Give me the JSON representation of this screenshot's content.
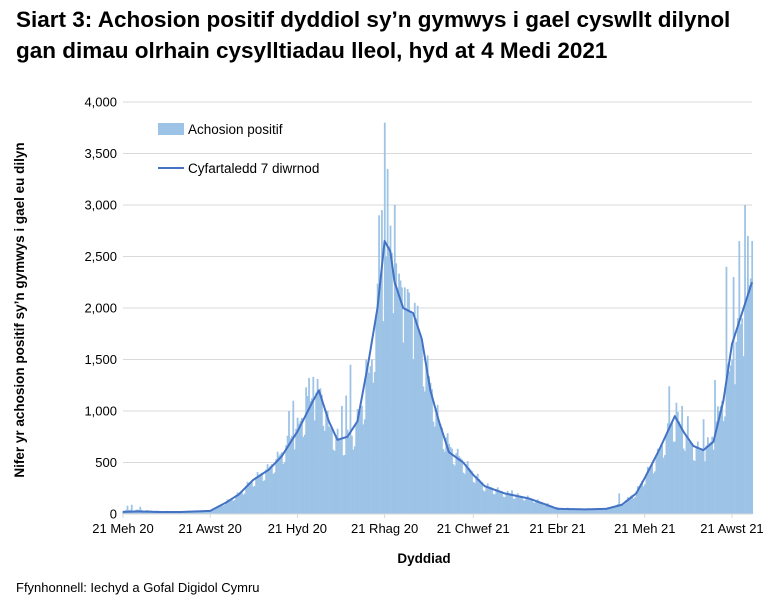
{
  "title": "Siart 3: Achosion positif dyddiol sy’n gymwys i gael cyswllt dilynol gan dimau olrhain cysylltiadau lleol, hyd at 4 Medi 2021",
  "source": "Ffynhonnell: Iechyd a Gofal Digidol Cymru",
  "chart_data": {
    "type": "bar",
    "xlabel": "Dyddiad",
    "ylabel": "Nifer yr achosion positif sy’n gymwys i gael eu dilyn",
    "ylim": [
      0,
      4000
    ],
    "yticks": [
      0,
      500,
      1000,
      1500,
      2000,
      2500,
      3000,
      3500,
      4000
    ],
    "ytick_labels": [
      "0",
      "500",
      "1,000",
      "1,500",
      "2,000",
      "2,500",
      "3,000",
      "3,500",
      "4,000"
    ],
    "x_start": "2020-06-21",
    "x_end": "2021-09-04",
    "xticks": [
      {
        "date": "2020-06-21",
        "label": "21 Meh 20"
      },
      {
        "date": "2020-08-21",
        "label": "21 Awst 20"
      },
      {
        "date": "2020-10-21",
        "label": "21 Hyd 20"
      },
      {
        "date": "2020-12-21",
        "label": "21 Rhag 20"
      },
      {
        "date": "2021-02-21",
        "label": "21 Chwef 21"
      },
      {
        "date": "2021-04-21",
        "label": "21 Ebr 21"
      },
      {
        "date": "2021-06-21",
        "label": "21 Meh 21"
      },
      {
        "date": "2021-08-21",
        "label": "21 Awst 21"
      }
    ],
    "grid": "horizontal",
    "legend_position": "top-left",
    "series": [
      {
        "name": "Achosion positif",
        "kind": "bar",
        "color": "#9dc3e6",
        "anchor_points": [
          [
            "2020-06-21",
            40
          ],
          [
            "2020-07-01",
            40
          ],
          [
            "2020-07-15",
            30
          ],
          [
            "2020-08-01",
            25
          ],
          [
            "2020-08-21",
            30
          ],
          [
            "2020-09-01",
            120
          ],
          [
            "2020-09-10",
            200
          ],
          [
            "2020-09-20",
            340
          ],
          [
            "2020-10-01",
            450
          ],
          [
            "2020-10-10",
            600
          ],
          [
            "2020-10-21",
            850
          ],
          [
            "2020-11-01",
            1150
          ],
          [
            "2020-11-06",
            1220
          ],
          [
            "2020-11-12",
            850
          ],
          [
            "2020-11-20",
            720
          ],
          [
            "2020-11-28",
            760
          ],
          [
            "2020-12-05",
            1050
          ],
          [
            "2020-12-12",
            1500
          ],
          [
            "2020-12-18",
            2300
          ],
          [
            "2020-12-24",
            2600
          ],
          [
            "2020-12-30",
            2400
          ],
          [
            "2021-01-05",
            2000
          ],
          [
            "2021-01-12",
            1900
          ],
          [
            "2021-01-20",
            1400
          ],
          [
            "2021-01-28",
            900
          ],
          [
            "2021-02-05",
            650
          ],
          [
            "2021-02-15",
            500
          ],
          [
            "2021-02-21",
            400
          ],
          [
            "2021-03-01",
            280
          ],
          [
            "2021-03-15",
            210
          ],
          [
            "2021-04-01",
            160
          ],
          [
            "2021-04-21",
            60
          ],
          [
            "2021-05-10",
            50
          ],
          [
            "2021-05-25",
            55
          ],
          [
            "2021-06-05",
            100
          ],
          [
            "2021-06-15",
            220
          ],
          [
            "2021-06-21",
            370
          ],
          [
            "2021-07-01",
            600
          ],
          [
            "2021-07-10",
            900
          ],
          [
            "2021-07-15",
            900
          ],
          [
            "2021-07-22",
            700
          ],
          [
            "2021-07-30",
            620
          ],
          [
            "2021-08-06",
            700
          ],
          [
            "2021-08-14",
            1100
          ],
          [
            "2021-08-21",
            1500
          ],
          [
            "2021-08-28",
            1900
          ],
          [
            "2021-09-04",
            2350
          ]
        ],
        "spikes": [
          [
            "2020-06-24",
            80
          ],
          [
            "2020-06-27",
            90
          ],
          [
            "2020-07-03",
            70
          ],
          [
            "2020-10-15",
            1000
          ],
          [
            "2020-10-18",
            1100
          ],
          [
            "2020-10-27",
            1230
          ],
          [
            "2020-10-29",
            1320
          ],
          [
            "2020-11-01",
            1330
          ],
          [
            "2020-11-21",
            1050
          ],
          [
            "2020-11-24",
            1150
          ],
          [
            "2020-11-27",
            1450
          ],
          [
            "2020-12-08",
            1500
          ],
          [
            "2020-12-17",
            2900
          ],
          [
            "2020-12-19",
            2950
          ],
          [
            "2020-12-21",
            3800
          ],
          [
            "2020-12-23",
            3350
          ],
          [
            "2020-12-25",
            2800
          ],
          [
            "2020-12-28",
            3000
          ],
          [
            "2020-12-30",
            2200
          ],
          [
            "2021-01-04",
            2200
          ],
          [
            "2021-01-07",
            2150
          ],
          [
            "2021-01-11",
            2050
          ],
          [
            "2021-03-20",
            230
          ],
          [
            "2021-06-03",
            200
          ],
          [
            "2021-07-08",
            1240
          ],
          [
            "2021-07-13",
            1080
          ],
          [
            "2021-07-17",
            1050
          ],
          [
            "2021-07-21",
            950
          ],
          [
            "2021-08-01",
            920
          ],
          [
            "2021-08-09",
            1300
          ],
          [
            "2021-08-17",
            2400
          ],
          [
            "2021-08-22",
            2300
          ],
          [
            "2021-08-26",
            2650
          ],
          [
            "2021-08-30",
            3000
          ],
          [
            "2021-09-01",
            2700
          ],
          [
            "2021-09-04",
            2650
          ]
        ]
      },
      {
        "name": "Cyfartaledd 7 diwrnod",
        "kind": "line",
        "color": "#4472c4",
        "points": [
          [
            "2020-06-21",
            20
          ],
          [
            "2020-07-01",
            25
          ],
          [
            "2020-07-15",
            20
          ],
          [
            "2020-08-01",
            20
          ],
          [
            "2020-08-21",
            30
          ],
          [
            "2020-09-01",
            110
          ],
          [
            "2020-09-10",
            190
          ],
          [
            "2020-09-20",
            330
          ],
          [
            "2020-10-01",
            430
          ],
          [
            "2020-10-10",
            560
          ],
          [
            "2020-10-21",
            800
          ],
          [
            "2020-11-01",
            1100
          ],
          [
            "2020-11-05",
            1200
          ],
          [
            "2020-11-12",
            900
          ],
          [
            "2020-11-18",
            720
          ],
          [
            "2020-11-25",
            750
          ],
          [
            "2020-12-02",
            900
          ],
          [
            "2020-12-10",
            1500
          ],
          [
            "2020-12-16",
            2000
          ],
          [
            "2020-12-21",
            2650
          ],
          [
            "2020-12-25",
            2550
          ],
          [
            "2020-12-28",
            2250
          ],
          [
            "2021-01-03",
            2000
          ],
          [
            "2021-01-10",
            1950
          ],
          [
            "2021-01-16",
            1700
          ],
          [
            "2021-01-22",
            1200
          ],
          [
            "2021-01-28",
            900
          ],
          [
            "2021-02-04",
            600
          ],
          [
            "2021-02-14",
            500
          ],
          [
            "2021-02-21",
            380
          ],
          [
            "2021-03-01",
            270
          ],
          [
            "2021-03-15",
            200
          ],
          [
            "2021-04-01",
            150
          ],
          [
            "2021-04-21",
            50
          ],
          [
            "2021-05-10",
            45
          ],
          [
            "2021-05-25",
            50
          ],
          [
            "2021-06-05",
            90
          ],
          [
            "2021-06-15",
            200
          ],
          [
            "2021-06-21",
            350
          ],
          [
            "2021-07-01",
            620
          ],
          [
            "2021-07-12",
            950
          ],
          [
            "2021-07-18",
            800
          ],
          [
            "2021-07-25",
            660
          ],
          [
            "2021-08-01",
            620
          ],
          [
            "2021-08-08",
            700
          ],
          [
            "2021-08-15",
            1100
          ],
          [
            "2021-08-21",
            1650
          ],
          [
            "2021-08-28",
            1950
          ],
          [
            "2021-09-04",
            2250
          ]
        ]
      }
    ]
  }
}
